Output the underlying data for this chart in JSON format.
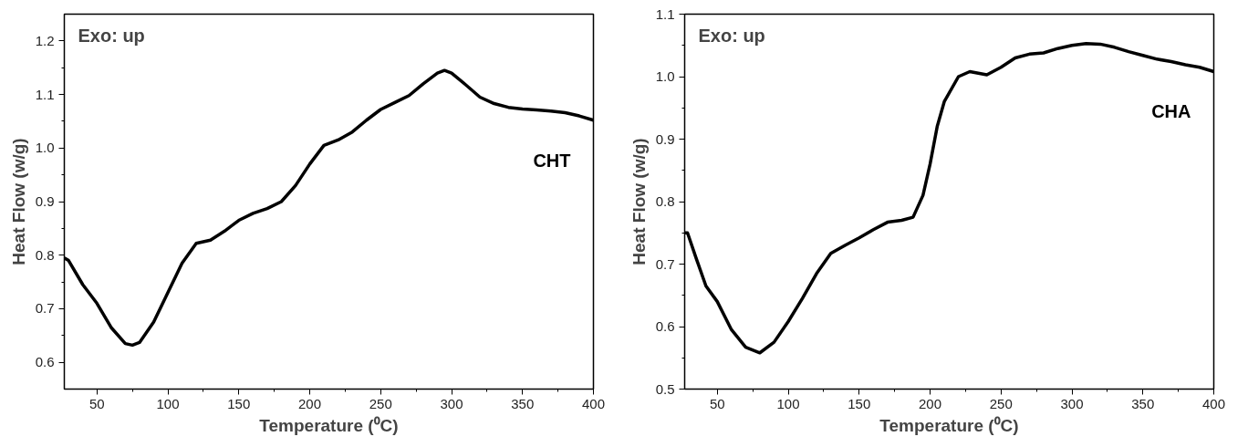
{
  "chart_data": [
    {
      "type": "line",
      "xlabel": "Temperature (⁰C)",
      "ylabel": "Heat Flow (w/g)",
      "annotations": [
        "Exo: up"
      ],
      "xlim": [
        27,
        400
      ],
      "ylim": [
        0.55,
        1.25
      ],
      "xticks": [
        50,
        100,
        150,
        200,
        250,
        300,
        350,
        400
      ],
      "yticks": [
        0.6,
        0.7,
        0.8,
        0.9,
        {
          "value": 1,
          "label": "1.0"
        },
        1.1,
        1.2
      ],
      "grid": false,
      "marker": "none",
      "line_style": "solid",
      "series": [
        {
          "name": "CHT",
          "color": "#000000",
          "x": [
            27,
            30,
            40,
            50,
            60,
            70,
            75,
            80,
            90,
            100,
            110,
            120,
            130,
            140,
            150,
            160,
            170,
            180,
            190,
            200,
            210,
            220,
            230,
            240,
            250,
            260,
            270,
            280,
            290,
            295,
            300,
            310,
            320,
            330,
            340,
            350,
            360,
            370,
            380,
            390,
            400
          ],
          "values": [
            0.795,
            0.79,
            0.745,
            0.71,
            0.665,
            0.635,
            0.632,
            0.637,
            0.675,
            0.73,
            0.785,
            0.822,
            0.828,
            0.845,
            0.865,
            0.878,
            0.887,
            0.9,
            0.93,
            0.97,
            1.005,
            1.015,
            1.03,
            1.052,
            1.072,
            1.085,
            1.098,
            1.12,
            1.14,
            1.145,
            1.14,
            1.118,
            1.095,
            1.083,
            1.076,
            1.073,
            1.071,
            1.069,
            1.066,
            1.06,
            1.052
          ]
        }
      ]
    },
    {
      "type": "line",
      "xlabel": "Temperature (⁰C)",
      "ylabel": "Heat Flow (w/g)",
      "annotations": [
        "Exo: up"
      ],
      "xlim": [
        27,
        400
      ],
      "ylim": [
        0.5,
        1.1
      ],
      "xticks": [
        50,
        100,
        150,
        200,
        250,
        300,
        350,
        400
      ],
      "yticks": [
        0.5,
        0.6,
        0.7,
        0.8,
        0.9,
        {
          "value": 1,
          "label": "1.0"
        },
        1.1
      ],
      "grid": false,
      "marker": "none",
      "line_style": "solid",
      "series": [
        {
          "name": "CHA",
          "color": "#000000",
          "x": [
            27,
            29,
            35,
            42,
            50,
            60,
            70,
            80,
            90,
            100,
            110,
            120,
            130,
            140,
            150,
            160,
            170,
            180,
            188,
            195,
            200,
            205,
            210,
            220,
            228,
            240,
            250,
            260,
            270,
            280,
            290,
            300,
            310,
            320,
            330,
            340,
            350,
            360,
            370,
            380,
            390,
            400
          ],
          "values": [
            0.75,
            0.75,
            0.71,
            0.665,
            0.64,
            0.595,
            0.567,
            0.558,
            0.575,
            0.608,
            0.645,
            0.685,
            0.717,
            0.73,
            0.742,
            0.755,
            0.767,
            0.77,
            0.775,
            0.81,
            0.86,
            0.92,
            0.96,
            1.0,
            1.008,
            1.003,
            1.015,
            1.03,
            1.036,
            1.038,
            1.045,
            1.05,
            1.053,
            1.052,
            1.047,
            1.04,
            1.034,
            1.028,
            1.024,
            1.019,
            1.015,
            1.008
          ]
        }
      ]
    }
  ]
}
